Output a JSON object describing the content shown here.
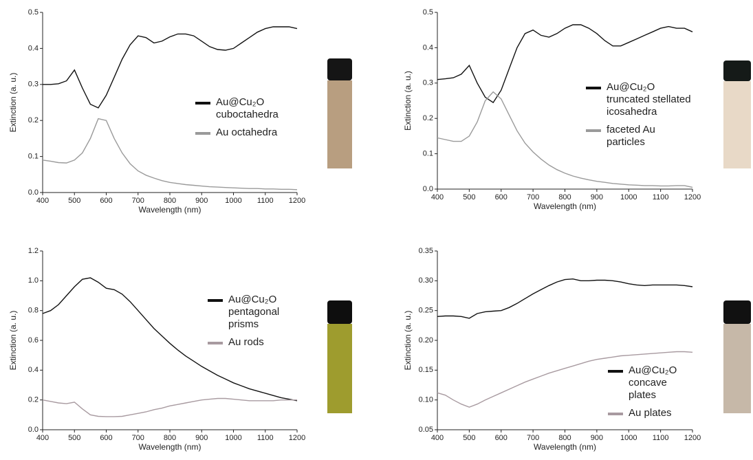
{
  "chart_data": [
    {
      "type": "line",
      "xlabel": "Wavelength (nm)",
      "ylabel": "Extinction (a. u.)",
      "x": [
        400,
        425,
        450,
        475,
        500,
        525,
        550,
        575,
        600,
        625,
        650,
        675,
        700,
        725,
        750,
        775,
        800,
        825,
        850,
        875,
        900,
        925,
        950,
        975,
        1000,
        1025,
        1050,
        1075,
        1100,
        1125,
        1150,
        1175,
        1200
      ],
      "series": [
        {
          "name": "Au@Cu₂O\ncuboctahedra",
          "color": "#111111",
          "values": [
            0.3,
            0.3,
            0.302,
            0.31,
            0.34,
            0.29,
            0.245,
            0.235,
            0.27,
            0.32,
            0.37,
            0.41,
            0.435,
            0.43,
            0.415,
            0.42,
            0.432,
            0.44,
            0.44,
            0.435,
            0.42,
            0.405,
            0.397,
            0.395,
            0.4,
            0.415,
            0.43,
            0.445,
            0.455,
            0.46,
            0.46,
            0.46,
            0.455
          ]
        },
        {
          "name": "Au octahedra",
          "color": "#9a9a9a",
          "values": [
            0.09,
            0.087,
            0.083,
            0.082,
            0.09,
            0.11,
            0.15,
            0.205,
            0.2,
            0.15,
            0.11,
            0.08,
            0.06,
            0.048,
            0.04,
            0.033,
            0.028,
            0.025,
            0.022,
            0.02,
            0.018,
            0.016,
            0.015,
            0.014,
            0.013,
            0.012,
            0.011,
            0.011,
            0.01,
            0.01,
            0.009,
            0.009,
            0.008
          ]
        }
      ],
      "xlim": [
        400,
        1200
      ],
      "xticks": [
        400,
        500,
        600,
        700,
        800,
        900,
        1000,
        1100,
        1200
      ],
      "ylim": [
        0,
        0.5
      ],
      "yticks": [
        {
          "value": 0,
          "label": "0.0"
        },
        0.1,
        0.2,
        0.3,
        0.4,
        0.5
      ]
    },
    {
      "type": "line",
      "xlabel": "Wavelength (nm)",
      "ylabel": "Extinction (a. u.)",
      "x": [
        400,
        425,
        450,
        475,
        500,
        525,
        550,
        575,
        600,
        625,
        650,
        675,
        700,
        725,
        750,
        775,
        800,
        825,
        850,
        875,
        900,
        925,
        950,
        975,
        1000,
        1025,
        1050,
        1075,
        1100,
        1125,
        1150,
        1175,
        1200
      ],
      "series": [
        {
          "name": "Au@Cu₂O\ntruncated stellated\nicosahedra",
          "color": "#111111",
          "values": [
            0.31,
            0.312,
            0.315,
            0.325,
            0.35,
            0.3,
            0.26,
            0.245,
            0.28,
            0.34,
            0.4,
            0.44,
            0.45,
            0.435,
            0.43,
            0.44,
            0.455,
            0.465,
            0.465,
            0.455,
            0.44,
            0.42,
            0.405,
            0.405,
            0.415,
            0.425,
            0.435,
            0.445,
            0.455,
            0.46,
            0.455,
            0.455,
            0.445
          ]
        },
        {
          "name": "faceted Au\nparticles",
          "color": "#9a9a9a",
          "values": [
            0.145,
            0.14,
            0.135,
            0.135,
            0.15,
            0.19,
            0.25,
            0.275,
            0.255,
            0.21,
            0.165,
            0.13,
            0.105,
            0.085,
            0.068,
            0.055,
            0.045,
            0.037,
            0.031,
            0.026,
            0.022,
            0.019,
            0.016,
            0.014,
            0.012,
            0.011,
            0.01,
            0.01,
            0.009,
            0.009,
            0.01,
            0.01,
            0.005
          ]
        }
      ],
      "xlim": [
        400,
        1200
      ],
      "xticks": [
        400,
        500,
        600,
        700,
        800,
        900,
        1000,
        1100,
        1200
      ],
      "ylim": [
        0,
        0.5
      ],
      "yticks": [
        {
          "value": 0,
          "label": "0.0"
        },
        0.1,
        0.2,
        0.3,
        0.4,
        0.5
      ]
    },
    {
      "type": "line",
      "xlabel": "Wavelength (nm)",
      "ylabel": "Extinction (a. u.)",
      "x": [
        400,
        425,
        450,
        475,
        500,
        525,
        550,
        575,
        600,
        625,
        650,
        675,
        700,
        725,
        750,
        775,
        800,
        825,
        850,
        875,
        900,
        925,
        950,
        975,
        1000,
        1025,
        1050,
        1075,
        1100,
        1125,
        1150,
        1175,
        1200
      ],
      "series": [
        {
          "name": "Au@Cu₂O\npentagonal\nprisms",
          "color": "#111111",
          "values": [
            0.78,
            0.8,
            0.84,
            0.9,
            0.96,
            1.01,
            1.02,
            0.99,
            0.95,
            0.94,
            0.91,
            0.86,
            0.8,
            0.74,
            0.68,
            0.63,
            0.58,
            0.535,
            0.495,
            0.46,
            0.425,
            0.395,
            0.365,
            0.34,
            0.315,
            0.295,
            0.275,
            0.26,
            0.245,
            0.23,
            0.215,
            0.205,
            0.195
          ]
        },
        {
          "name": "Au rods",
          "color": "#a89aa0",
          "values": [
            0.2,
            0.19,
            0.18,
            0.175,
            0.185,
            0.14,
            0.1,
            0.09,
            0.088,
            0.088,
            0.09,
            0.1,
            0.11,
            0.12,
            0.135,
            0.145,
            0.16,
            0.17,
            0.18,
            0.19,
            0.2,
            0.205,
            0.21,
            0.21,
            0.205,
            0.2,
            0.195,
            0.195,
            0.195,
            0.195,
            0.2,
            0.2,
            0.2
          ]
        }
      ],
      "xlim": [
        400,
        1200
      ],
      "xticks": [
        400,
        500,
        600,
        700,
        800,
        900,
        1000,
        1100,
        1200
      ],
      "ylim": [
        0,
        1.2
      ],
      "yticks": [
        {
          "value": 0,
          "label": "0.0"
        },
        0.2,
        0.4,
        0.6,
        0.8,
        {
          "value": 1,
          "label": "1.0"
        },
        1.2
      ]
    },
    {
      "type": "line",
      "xlabel": "Wavelength (nm)",
      "ylabel": "Extinction (a. u.)",
      "x": [
        400,
        425,
        450,
        475,
        500,
        525,
        550,
        575,
        600,
        625,
        650,
        675,
        700,
        725,
        750,
        775,
        800,
        825,
        850,
        875,
        900,
        925,
        950,
        975,
        1000,
        1025,
        1050,
        1075,
        1100,
        1125,
        1150,
        1175,
        1200
      ],
      "series": [
        {
          "name": "Au@Cu₂O\nconcave\nplates",
          "color": "#111111",
          "values": [
            0.24,
            0.241,
            0.241,
            0.24,
            0.237,
            0.245,
            0.248,
            0.249,
            0.25,
            0.255,
            0.262,
            0.27,
            0.278,
            0.285,
            0.292,
            0.298,
            0.302,
            0.303,
            0.3,
            0.3,
            0.301,
            0.301,
            0.3,
            0.298,
            0.295,
            0.293,
            0.292,
            0.293,
            0.293,
            0.293,
            0.293,
            0.292,
            0.29
          ]
        },
        {
          "name": "Au plates",
          "color": "#a89aa0",
          "values": [
            0.112,
            0.108,
            0.1,
            0.093,
            0.088,
            0.093,
            0.1,
            0.106,
            0.112,
            0.118,
            0.124,
            0.13,
            0.135,
            0.14,
            0.145,
            0.149,
            0.153,
            0.157,
            0.161,
            0.165,
            0.168,
            0.17,
            0.172,
            0.174,
            0.175,
            0.176,
            0.177,
            0.178,
            0.179,
            0.18,
            0.181,
            0.181,
            0.18
          ]
        }
      ],
      "xlim": [
        400,
        1200
      ],
      "xticks": [
        400,
        500,
        600,
        700,
        800,
        900,
        1000,
        1100,
        1200
      ],
      "ylim": [
        0.05,
        0.35
      ],
      "yticks": [
        0.05,
        {
          "value": 0.1,
          "label": "0.10"
        },
        0.15,
        {
          "value": 0.2,
          "label": "0.20"
        },
        0.25,
        {
          "value": 0.3,
          "label": "0.30"
        },
        0.35
      ]
    }
  ]
}
